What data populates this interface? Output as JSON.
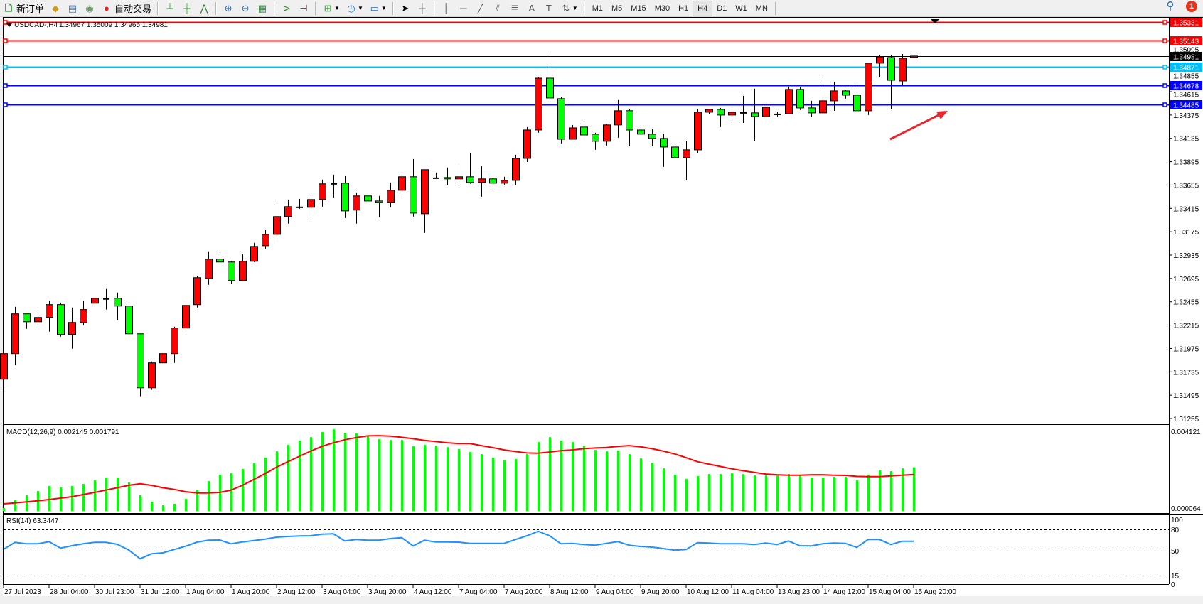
{
  "toolbar": {
    "new_order_label": "新订单",
    "auto_trading_label": "自动交易",
    "timeframes": [
      "M1",
      "M5",
      "M15",
      "M30",
      "H1",
      "H4",
      "D1",
      "W1",
      "MN"
    ],
    "active_timeframe": "H4",
    "notification_count": "1"
  },
  "chart": {
    "symbol": "USDCAD-,H4",
    "ohlc_header": "1.34967 1.35009 1.34965 1.34981",
    "macd_label": "MACD(12,26,9) 0.002145 0.001791",
    "rsi_label": "RSI(14) 63.3447"
  },
  "colors": {
    "bull_candle": "#ff0000",
    "bear_candle": "#00ff00",
    "macd_histogram": "#00ff00",
    "macd_signal": "#ff0000",
    "rsi_line": "#1e90ff",
    "arrow": "#e8262c"
  },
  "chart_data": {
    "type": "candlestick",
    "symbol": "USDCAD",
    "timeframe": "H4",
    "price_range": [
      1.31255,
      1.35331
    ],
    "candles": [
      [
        1.31659,
        1.31966,
        1.3155,
        1.31922
      ],
      [
        1.31922,
        1.32404,
        1.31805,
        1.32331
      ],
      [
        1.32331,
        1.32331,
        1.32177,
        1.3225
      ],
      [
        1.3225,
        1.32375,
        1.32177,
        1.32294
      ],
      [
        1.32294,
        1.32462,
        1.32148,
        1.32426
      ],
      [
        1.32426,
        1.32447,
        1.32097,
        1.32119
      ],
      [
        1.32119,
        1.32396,
        1.31973,
        1.32243
      ],
      [
        1.32243,
        1.32462,
        1.32214,
        1.32375
      ],
      [
        1.3244,
        1.32491,
        1.32426,
        1.32491
      ],
      [
        1.32484,
        1.32586,
        1.32375,
        1.32484
      ],
      [
        1.32491,
        1.3255,
        1.32265,
        1.32411
      ],
      [
        1.32411,
        1.32426,
        1.32112,
        1.32126
      ],
      [
        1.32126,
        1.32126,
        1.31484,
        1.31571
      ],
      [
        1.31571,
        1.31842,
        1.3155,
        1.31827
      ],
      [
        1.31827,
        1.31922,
        1.31827,
        1.31922
      ],
      [
        1.31922,
        1.32199,
        1.31827,
        1.32185
      ],
      [
        1.32185,
        1.32418,
        1.32112,
        1.32418
      ],
      [
        1.32426,
        1.32718,
        1.32396,
        1.32703
      ],
      [
        1.32696,
        1.32973,
        1.3263,
        1.32893
      ],
      [
        1.32893,
        1.3298,
        1.32812,
        1.32864
      ],
      [
        1.32864,
        1.32871,
        1.32637,
        1.32674
      ],
      [
        1.32674,
        1.32944,
        1.32674,
        1.32871
      ],
      [
        1.32871,
        1.33061,
        1.32864,
        1.33024
      ],
      [
        1.33031,
        1.33192,
        1.33002,
        1.33148
      ],
      [
        1.33148,
        1.33469,
        1.33046,
        1.33331
      ],
      [
        1.33331,
        1.33506,
        1.33258,
        1.33433
      ],
      [
        1.33426,
        1.33513,
        1.33411,
        1.33426
      ],
      [
        1.33426,
        1.33535,
        1.33316,
        1.33506
      ],
      [
        1.33506,
        1.3371,
        1.33433,
        1.33667
      ],
      [
        1.33667,
        1.33761,
        1.33528,
        1.33667
      ],
      [
        1.33674,
        1.33747,
        1.33316,
        1.33389
      ],
      [
        1.33397,
        1.33579,
        1.33258,
        1.33543
      ],
      [
        1.33543,
        1.33543,
        1.33462,
        1.33491
      ],
      [
        1.33491,
        1.33543,
        1.33324,
        1.33477
      ],
      [
        1.33477,
        1.33681,
        1.33426,
        1.33601
      ],
      [
        1.33601,
        1.33754,
        1.33543,
        1.3374
      ],
      [
        1.3374,
        1.33922,
        1.33331,
        1.33367
      ],
      [
        1.3336,
        1.33813,
        1.33163,
        1.33813
      ],
      [
        1.33725,
        1.33783,
        1.33725,
        1.33725
      ],
      [
        1.33732,
        1.33835,
        1.33652,
        1.33718
      ],
      [
        1.33718,
        1.33864,
        1.33681,
        1.3374
      ],
      [
        1.3374,
        1.33981,
        1.33667,
        1.33681
      ],
      [
        1.33681,
        1.33849,
        1.33535,
        1.33718
      ],
      [
        1.33718,
        1.33732,
        1.33586,
        1.33674
      ],
      [
        1.33674,
        1.3374,
        1.33659,
        1.33703
      ],
      [
        1.33703,
        1.33966,
        1.33659,
        1.33929
      ],
      [
        1.33929,
        1.34251,
        1.33893,
        1.34221
      ],
      [
        1.34221,
        1.34769,
        1.34192,
        1.34754
      ],
      [
        1.34754,
        1.3501,
        1.34513,
        1.3455
      ],
      [
        1.34543,
        1.34557,
        1.34083,
        1.34126
      ],
      [
        1.34126,
        1.34273,
        1.34126,
        1.34243
      ],
      [
        1.34251,
        1.34294,
        1.34097,
        1.3417
      ],
      [
        1.34178,
        1.34192,
        1.34017,
        1.34105
      ],
      [
        1.34105,
        1.3428,
        1.34061,
        1.34273
      ],
      [
        1.34273,
        1.34528,
        1.34141,
        1.34419
      ],
      [
        1.34419,
        1.34433,
        1.34053,
        1.34221
      ],
      [
        1.34221,
        1.34243,
        1.34163,
        1.34178
      ],
      [
        1.34178,
        1.34229,
        1.34053,
        1.34134
      ],
      [
        1.34134,
        1.34185,
        1.33842,
        1.34046
      ],
      [
        1.34046,
        1.3409,
        1.33929,
        1.33937
      ],
      [
        1.33937,
        1.34105,
        1.33703,
        1.34017
      ],
      [
        1.34017,
        1.3444,
        1.33981,
        1.34404
      ],
      [
        1.34404,
        1.34433,
        1.34389,
        1.34433
      ],
      [
        1.34433,
        1.34448,
        1.34251,
        1.34375
      ],
      [
        1.34375,
        1.34448,
        1.3428,
        1.34404
      ],
      [
        1.34397,
        1.34572,
        1.34294,
        1.34397
      ],
      [
        1.34397,
        1.34645,
        1.34105,
        1.3436
      ],
      [
        1.3436,
        1.34499,
        1.34273,
        1.34455
      ],
      [
        1.34382,
        1.34411,
        1.3436,
        1.34382
      ],
      [
        1.34389,
        1.34667,
        1.34389,
        1.34638
      ],
      [
        1.34638,
        1.34659,
        1.34426,
        1.34448
      ],
      [
        1.34448,
        1.34521,
        1.3436,
        1.34397
      ],
      [
        1.34397,
        1.34784,
        1.34397,
        1.34521
      ],
      [
        1.34521,
        1.34711,
        1.34419,
        1.34623
      ],
      [
        1.34623,
        1.3463,
        1.34543,
        1.34579
      ],
      [
        1.34579,
        1.34689,
        1.34411,
        1.34419
      ],
      [
        1.34419,
        1.34908,
        1.34375,
        1.34908
      ],
      [
        1.34908,
        1.34988,
        1.34769,
        1.34973
      ],
      [
        1.34966,
        1.34995,
        1.3444,
        1.34732
      ],
      [
        1.34725,
        1.35002,
        1.34681,
        1.34959
      ],
      [
        1.34967,
        1.35009,
        1.34965,
        1.34981
      ]
    ],
    "price_ticks": [
      "1.35095",
      "1.34855",
      "1.34615",
      "1.34375",
      "1.34135",
      "1.33895",
      "1.33655",
      "1.33415",
      "1.33175",
      "1.32935",
      "1.32695",
      "1.32455",
      "1.32215",
      "1.31975",
      "1.31735",
      "1.31495",
      "1.31255"
    ],
    "time_labels": [
      "27 Jul 2023",
      "28 Jul 04:00",
      "30 Jul 23:00",
      "31 Jul 12:00",
      "1 Aug 04:00",
      "1 Aug 20:00",
      "2 Aug 12:00",
      "3 Aug 04:00",
      "3 Aug 20:00",
      "4 Aug 12:00",
      "7 Aug 04:00",
      "7 Aug 20:00",
      "8 Aug 12:00",
      "9 Aug 04:00",
      "9 Aug 20:00",
      "10 Aug 12:00",
      "11 Aug 04:00",
      "13 Aug 23:00",
      "14 Aug 12:00",
      "15 Aug 04:00",
      "15 Aug 20:00"
    ],
    "hlines": [
      {
        "price": 1.35331,
        "label": "1.35331",
        "color": "#ff0000",
        "text_color": "#ffffff"
      },
      {
        "price": 1.35143,
        "label": "1.35143",
        "color": "#ff0000",
        "text_color": "#ffffff"
      },
      {
        "price": 1.34981,
        "label": "1.34981",
        "color": "#000000",
        "text_color": "#ffffff",
        "bid": true
      },
      {
        "price": 1.34871,
        "label": "1.34871",
        "color": "#00bfff",
        "text_color": "#ffffff"
      },
      {
        "price": 1.34678,
        "label": "1.34678",
        "color": "#0000ff",
        "text_color": "#ffffff"
      },
      {
        "price": 1.34485,
        "label": "1.34485",
        "color": "#0000ff",
        "text_color": "#ffffff"
      }
    ],
    "macd": {
      "axis_top_label": "0.004121",
      "axis_bottom_label": "0.000064",
      "histogram": [
        0.00014,
        0.000523,
        0.000768,
        0.000977,
        0.001221,
        0.001151,
        0.001221,
        0.001326,
        0.0015,
        0.00164,
        0.00164,
        0.001396,
        0.000768,
        0.000454,
        0.000279,
        0.000349,
        0.000593,
        0.001012,
        0.001465,
        0.001779,
        0.001849,
        0.002059,
        0.002338,
        0.002617,
        0.002931,
        0.003245,
        0.003454,
        0.003629,
        0.003873,
        0.004012,
        0.003838,
        0.003803,
        0.003663,
        0.003524,
        0.003489,
        0.003489,
        0.003175,
        0.003245,
        0.00321,
        0.00314,
        0.003035,
        0.002896,
        0.002791,
        0.002617,
        0.002477,
        0.002547,
        0.002791,
        0.003384,
        0.003629,
        0.003454,
        0.003384,
        0.00321,
        0.003001,
        0.002931,
        0.002966,
        0.002791,
        0.002582,
        0.002373,
        0.002093,
        0.001779,
        0.00157,
        0.00171,
        0.001814,
        0.001814,
        0.001849,
        0.001814,
        0.001745,
        0.001745,
        0.001745,
        0.001814,
        0.001745,
        0.00164,
        0.00164,
        0.001675,
        0.001675,
        0.0015,
        0.001779,
        0.001989,
        0.001954,
        0.002093,
        0.002145
      ],
      "signal": [
        0.000349,
        0.000395,
        0.000442,
        0.0005,
        0.000558,
        0.000628,
        0.000698,
        0.000802,
        0.000907,
        0.001023,
        0.00114,
        0.001256,
        0.001337,
        0.001256,
        0.00114,
        0.001058,
        0.000942,
        0.000884,
        0.000884,
        0.000907,
        0.001023,
        0.001256,
        0.001547,
        0.001838,
        0.002152,
        0.002419,
        0.002687,
        0.002942,
        0.003175,
        0.003349,
        0.003501,
        0.003605,
        0.003687,
        0.003698,
        0.003675,
        0.003617,
        0.003547,
        0.003466,
        0.003408,
        0.003349,
        0.003315,
        0.003315,
        0.00321,
        0.003117,
        0.003001,
        0.002919,
        0.002849,
        0.002838,
        0.002896,
        0.002966,
        0.003001,
        0.003059,
        0.003094,
        0.003117,
        0.003175,
        0.00321,
        0.003152,
        0.003059,
        0.002942,
        0.002803,
        0.002617,
        0.002419,
        0.002303,
        0.002186,
        0.00207,
        0.001977,
        0.001896,
        0.001814,
        0.001779,
        0.001756,
        0.001756,
        0.001779,
        0.001779,
        0.001756,
        0.001745,
        0.001698,
        0.001686,
        0.001686,
        0.001721,
        0.001756,
        0.001791
      ]
    },
    "rsi": {
      "levels": [
        "80",
        "50",
        "15"
      ],
      "axis_labels": [
        "100",
        "80",
        "50",
        "15",
        "0"
      ],
      "values": [
        52,
        61.7,
        59.7,
        59.7,
        62.7,
        53.7,
        57,
        59.7,
        61.7,
        61.7,
        59,
        51,
        38.7,
        45.7,
        47,
        51.7,
        56.3,
        62,
        64.7,
        65,
        59.7,
        62.3,
        64.3,
        66.3,
        69,
        70,
        70.7,
        71,
        73.3,
        73.7,
        63.7,
        65.7,
        64.7,
        64.7,
        67,
        68.3,
        56.7,
        64.7,
        62.3,
        62.3,
        62,
        60.3,
        60.3,
        60.3,
        60.3,
        65.7,
        71,
        77.3,
        71,
        59.7,
        60.3,
        58.7,
        57.7,
        60.3,
        62.7,
        57.7,
        56,
        55,
        53,
        50.7,
        51.7,
        61.3,
        60.7,
        59.7,
        59.7,
        59.7,
        58.7,
        60.7,
        58.7,
        63.7,
        57,
        56.7,
        59.7,
        60.7,
        60.3,
        54.7,
        65.7,
        65.7,
        58.7,
        63.3,
        63.3447
      ]
    }
  }
}
